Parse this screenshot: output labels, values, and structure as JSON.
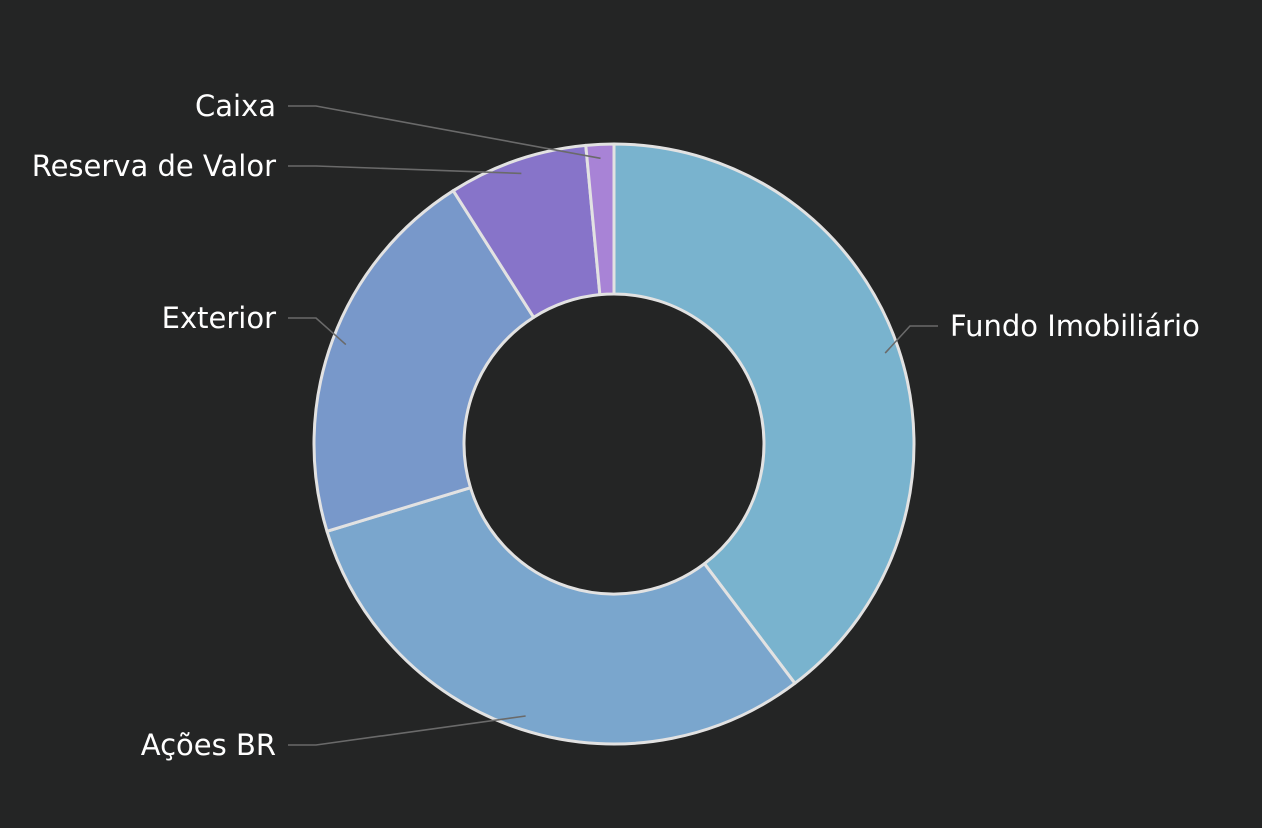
{
  "background": "#242525",
  "chart_data": {
    "type": "pie",
    "donut": true,
    "title": "",
    "legend": "none",
    "labels_position": "outside-with-leader-lines",
    "slice_border_color": "#e2e2e2",
    "label_color": "#ffffff",
    "leader_line_color": "#6a6a6a",
    "series": [
      {
        "values": [
          {
            "label": "Fundo Imobiliário",
            "value": 39.7,
            "color": "#79b3ce"
          },
          {
            "label": "Ações BR",
            "value": 30.6,
            "color": "#7aa6cd"
          },
          {
            "label": "Exterior",
            "value": 20.7,
            "color": "#7898ca"
          },
          {
            "label": "Reserva de Valor",
            "value": 7.5,
            "color": "#8774c9"
          },
          {
            "label": "Caixa",
            "value": 1.5,
            "color": "#a883d6"
          }
        ]
      }
    ]
  }
}
